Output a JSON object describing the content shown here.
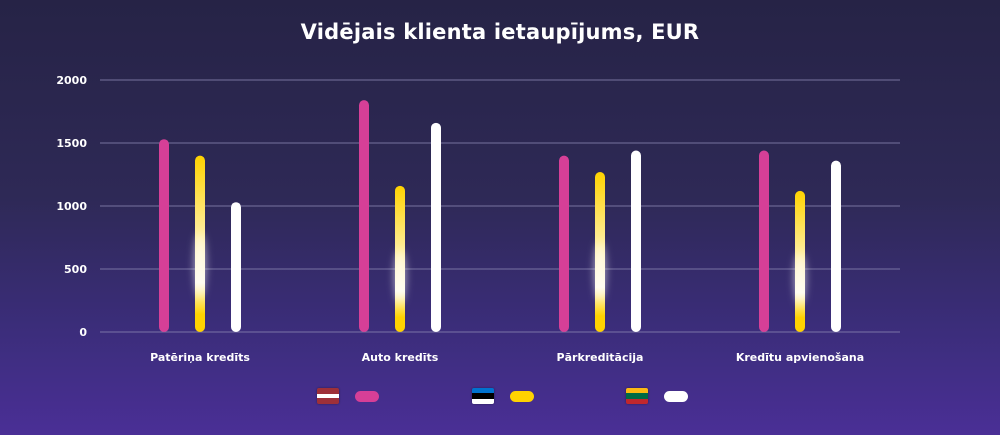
{
  "chart_data": {
    "type": "bar",
    "title": "Vidējais klienta ietaupījums, EUR",
    "categories": [
      "Patēriņa kredīts",
      "Auto kredīts",
      "Pārkreditācija",
      "Kredītu apvienošana"
    ],
    "series": [
      {
        "flag": "latvia-flag",
        "color": "#d63f97",
        "values": [
          1530,
          1840,
          1400,
          1440
        ]
      },
      {
        "flag": "estonia-flag",
        "color": "#ffd200",
        "values": [
          1400,
          1160,
          1270,
          1120
        ]
      },
      {
        "flag": "lithuania-flag",
        "color": "#ffffff",
        "values": [
          1030,
          1660,
          1440,
          1360
        ]
      }
    ],
    "yticks": [
      "0",
      "500",
      "1000",
      "1500",
      "2000"
    ],
    "ylim": [
      0,
      2000
    ],
    "grid": true,
    "legend_position": "bottom"
  }
}
